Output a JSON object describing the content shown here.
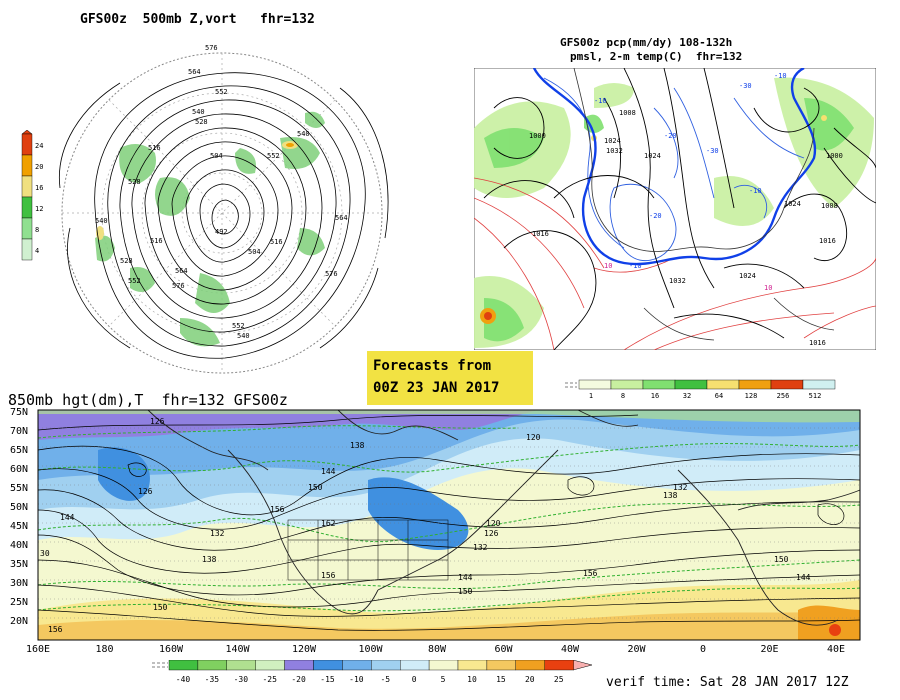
{
  "panels": {
    "z500": {
      "title": "GFS00z  500mb Z,vort   fhr=132",
      "colorbar_ticks": [
        "24",
        "20",
        "16",
        "12",
        "8",
        "4"
      ],
      "colorbar_colors": [
        "#e04010",
        "#f0a000",
        "#f0e080",
        "#40c040",
        "#90e090",
        "#d0f0d0"
      ],
      "contour_labels": [
        "576",
        "564",
        "552",
        "540",
        "528",
        "516",
        "504",
        "492",
        "504",
        "516",
        "528",
        "540",
        "552",
        "564",
        "576",
        "540",
        "552",
        "516",
        "564",
        "540",
        "528",
        "576",
        "552"
      ]
    },
    "precip": {
      "title_line1": "GFS00z pcp(mm/dy) 108-132h",
      "title_line2": "pmsl, 2-m temp(C)  fhr=132",
      "isobar_labels": [
        "1000",
        "1008",
        "1016",
        "1024",
        "1032",
        "1024",
        "1008",
        "1016",
        "1000",
        "1016",
        "1032",
        "1024",
        "1016"
      ],
      "temp_labels": [
        "-10",
        "-20",
        "-30",
        "-20",
        "-10",
        "-10",
        "10",
        "10",
        "-10",
        "-30"
      ],
      "colorbar_ticks": [
        "1",
        "8",
        "16",
        "32",
        "64",
        "128",
        "256",
        "512"
      ],
      "colorbar_colors": [
        "#f4fbe0",
        "#c8f0a0",
        "#80e070",
        "#40c040",
        "#f6e070",
        "#f0a010",
        "#e04010",
        "#d0f0f0"
      ]
    },
    "h850": {
      "title": "850mb hgt(dm),T  fhr=132 GFS00z",
      "lat_labels": [
        "75N",
        "70N",
        "65N",
        "60N",
        "55N",
        "50N",
        "45N",
        "40N",
        "35N",
        "30N",
        "25N",
        "20N"
      ],
      "lon_labels": [
        "160E",
        "180",
        "160W",
        "140W",
        "120W",
        "100W",
        "80W",
        "60W",
        "40W",
        "20W",
        "0",
        "20E",
        "40E"
      ],
      "height_labels": [
        "126",
        "138",
        "120",
        "126",
        "132",
        "144",
        "150",
        "156",
        "162",
        "132",
        "138",
        "144",
        "150",
        "156",
        "120",
        "126",
        "132",
        "138",
        "144",
        "150",
        "156"
      ],
      "colorbar_ticks": [
        "-40",
        "-35",
        "-30",
        "-25",
        "-20",
        "-15",
        "-10",
        "-5",
        "0",
        "5",
        "10",
        "15",
        "20",
        "25"
      ],
      "colorbar_colors": [
        "#40c040",
        "#80d060",
        "#b0e090",
        "#d0f0c0",
        "#9080e0",
        "#4090e0",
        "#70b0ea",
        "#a0d0f0",
        "#d0ecf8",
        "#f4f8d0",
        "#f8e890",
        "#f4c860",
        "#f0a020",
        "#e84010"
      ]
    }
  },
  "forecast_box": {
    "line1": "Forecasts from",
    "line2": "00Z 23 JAN 2017"
  },
  "verif_time": "verif time: Sat 28 JAN 2017 12Z"
}
